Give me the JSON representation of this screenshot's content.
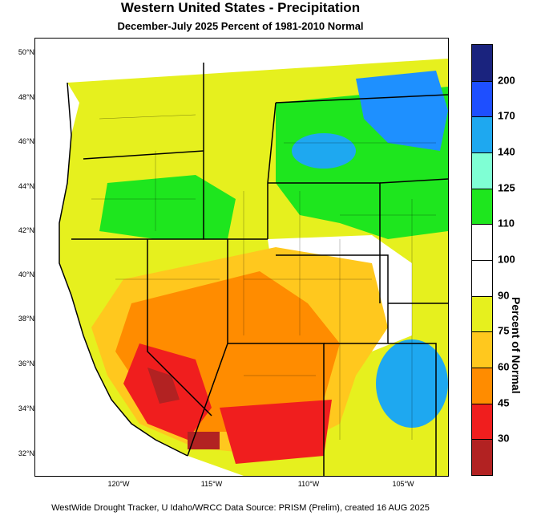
{
  "title": "Western United States - Precipitation",
  "subtitle": "December-July 2025  Percent of 1981-2010 Normal",
  "lat_ticks": [
    "50°N",
    "48°N",
    "46°N",
    "44°N",
    "42°N",
    "40°N",
    "38°N",
    "36°N",
    "34°N",
    "32°N"
  ],
  "lon_ticks": [
    "120°W",
    "115°W",
    "110°W",
    "105°W"
  ],
  "colorbar": {
    "title": "Percent of Normal",
    "labels": [
      "200",
      "170",
      "140",
      "125",
      "110",
      "100",
      "90",
      "75",
      "60",
      "45",
      "30"
    ],
    "colors": [
      "#1a237e",
      "#1e4fff",
      "#1ea8f0",
      "#7fffd4",
      "#1ee61e",
      "#ffffff",
      "#ffffff",
      "#e6f01e",
      "#ffc81e",
      "#ff8c00",
      "#f01e1e",
      "#b22222"
    ]
  },
  "footer": "WestWide Drought Tracker, U Idaho/WRCC Data Source: PRISM (Prelim), created 16 AUG 2025"
}
